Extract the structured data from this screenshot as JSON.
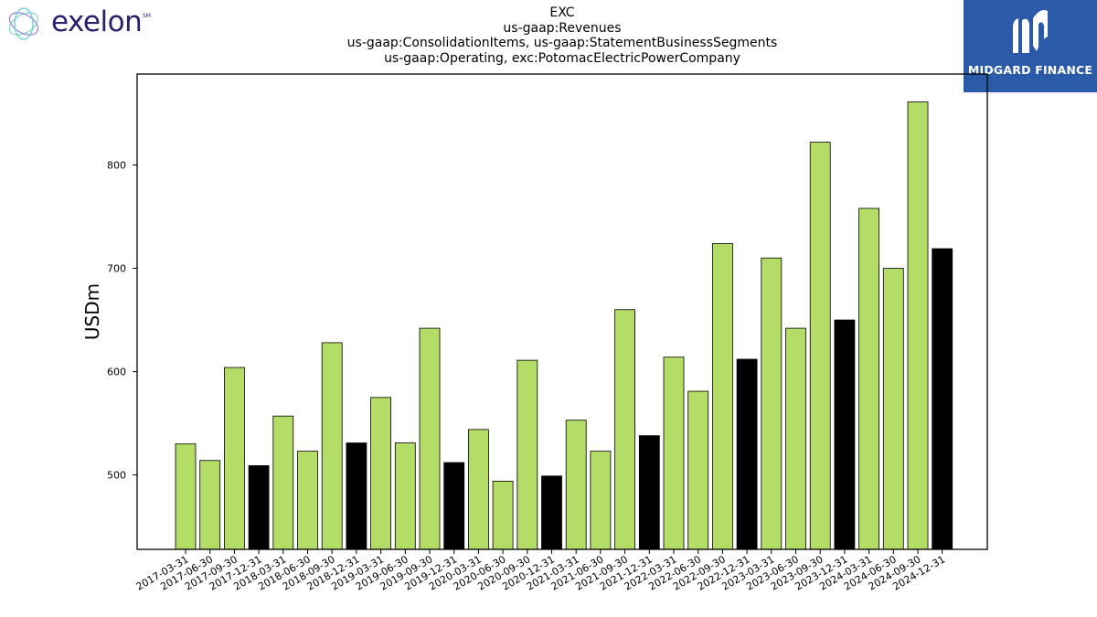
{
  "logos": {
    "left_brand": "exelon",
    "left_mark": "SM",
    "right_brand": "MIDGARD FINANCE"
  },
  "title_lines": [
    "EXC",
    "us-gaap:Revenues",
    "us-gaap:ConsolidationItems, us-gaap:StatementBusinessSegments",
    "us-gaap:Operating, exc:PotomacElectricPowerCompany"
  ],
  "colors": {
    "quarter_bar": "#b3dd67",
    "year_end_bar": "#000000"
  },
  "chart_data": {
    "type": "bar",
    "ylabel": "USDm",
    "xlabel": "",
    "ylim": [
      428,
      888
    ],
    "yticks": [
      500,
      600,
      700,
      800
    ],
    "grid": false,
    "categories": [
      "2017-03-31",
      "2017-06-30",
      "2017-09-30",
      "2017-12-31",
      "2018-03-31",
      "2018-06-30",
      "2018-09-30",
      "2018-12-31",
      "2019-03-31",
      "2019-06-30",
      "2019-09-30",
      "2019-12-31",
      "2020-03-31",
      "2020-06-30",
      "2020-09-30",
      "2020-12-31",
      "2021-03-31",
      "2021-06-30",
      "2021-09-30",
      "2021-12-31",
      "2022-03-31",
      "2022-06-30",
      "2022-09-30",
      "2022-12-31",
      "2023-03-31",
      "2023-06-30",
      "2023-09-30",
      "2023-12-31",
      "2024-03-31",
      "2024-06-30",
      "2024-09-30",
      "2024-12-31"
    ],
    "values": [
      530,
      514,
      604,
      509,
      557,
      523,
      628,
      531,
      575,
      531,
      642,
      512,
      544,
      494,
      611,
      499,
      553,
      523,
      660,
      538,
      614,
      581,
      724,
      612,
      710,
      642,
      822,
      650,
      758,
      700,
      861,
      719
    ]
  }
}
